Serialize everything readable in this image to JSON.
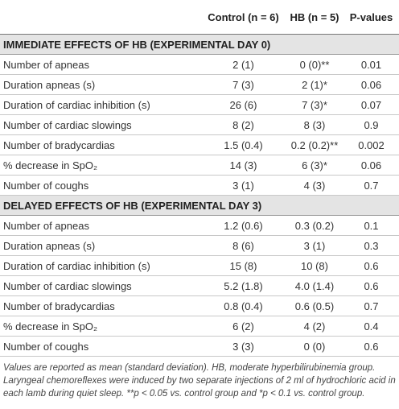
{
  "table": {
    "header": [
      "",
      "Control (n = 6)",
      "HB (n = 5)",
      "P-values"
    ],
    "sections": [
      {
        "title": "IMMEDIATE EFFECTS OF HB (EXPERIMENTAL DAY 0)",
        "rows": [
          [
            "Number of apneas",
            "2 (1)",
            "0 (0)**",
            "0.01"
          ],
          [
            "Duration apneas (s)",
            "7 (3)",
            "2 (1)*",
            "0.06"
          ],
          [
            "Duration of cardiac inhibition (s)",
            "26 (6)",
            "7 (3)*",
            "0.07"
          ],
          [
            "Number of cardiac slowings",
            "8 (2)",
            "8 (3)",
            "0.9"
          ],
          [
            "Number of bradycardias",
            "1.5 (0.4)",
            "0.2 (0.2)**",
            "0.002"
          ],
          [
            "% decrease in SpO₂",
            "14 (3)",
            "6 (3)*",
            "0.06"
          ],
          [
            "Number of coughs",
            "3 (1)",
            "4 (3)",
            "0.7"
          ]
        ]
      },
      {
        "title": "DELAYED EFFECTS OF HB (EXPERIMENTAL DAY 3)",
        "rows": [
          [
            "Number of apneas",
            "1.2 (0.6)",
            "0.3 (0.2)",
            "0.1"
          ],
          [
            "Duration apneas (s)",
            "8 (6)",
            "3 (1)",
            "0.3"
          ],
          [
            "Duration of cardiac inhibition (s)",
            "15 (8)",
            "10 (8)",
            "0.6"
          ],
          [
            "Number of cardiac slowings",
            "5.2 (1.8)",
            "4.0 (1.4)",
            "0.6"
          ],
          [
            "Number of bradycardias",
            "0.8 (0.4)",
            "0.6 (0.5)",
            "0.7"
          ],
          [
            "% decrease in SpO₂",
            "6 (2)",
            "4 (2)",
            "0.4"
          ],
          [
            "Number of coughs",
            "3 (3)",
            "0 (0)",
            "0.6"
          ]
        ]
      }
    ],
    "footnote": "Values are reported as mean (standard deviation). HB, moderate hyperbilirubinemia group. Laryngeal chemoreflexes were induced by two separate injections of 2 ml of hydrochloric acid in each lamb during quiet sleep. **p < 0.05 vs. control group and *p < 0.1 vs. control group."
  }
}
